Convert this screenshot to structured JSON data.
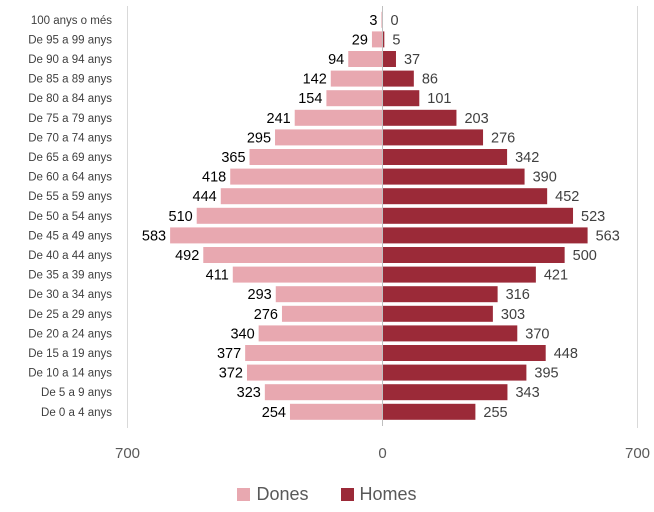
{
  "chart_data": {
    "type": "bar",
    "orientation": "horizontal",
    "layout": "population-pyramid",
    "categories": [
      "100 anys o més",
      "De 95 a 99 anys",
      "De 90 a 94 anys",
      "De 85 a 89 anys",
      "De 80 a 84 anys",
      "De 75 a 79 anys",
      "De 70 a 74 anys",
      "De 65 a 69 anys",
      "De 60 a 64 anys",
      "De 55 a 59 anys",
      "De 50 a 54 anys",
      "De 45 a 49 anys",
      "De 40 a 44 anys",
      "De 35 a 39 anys",
      "De 30 a 34 anys",
      "De 25 a 29 anys",
      "De 20 a 24 anys",
      "De 15 a 19 anys",
      "De 10 a 14 anys",
      "De 5 a 9 anys",
      "De 0 a 4 anys"
    ],
    "series": [
      {
        "name": "Dones",
        "side": "left",
        "color": "#e8a8b0",
        "values": [
          3,
          29,
          94,
          142,
          154,
          241,
          295,
          365,
          418,
          444,
          510,
          583,
          492,
          411,
          293,
          276,
          340,
          377,
          372,
          323,
          254
        ]
      },
      {
        "name": "Homes",
        "side": "right",
        "color": "#9b2a38",
        "values": [
          0,
          5,
          37,
          86,
          101,
          203,
          276,
          342,
          390,
          452,
          523,
          563,
          500,
          421,
          316,
          303,
          370,
          448,
          395,
          343,
          255
        ]
      }
    ],
    "xlim": [
      -700,
      700
    ],
    "x_tick_labels": [
      "700",
      "0",
      "700"
    ],
    "legend_position": "bottom",
    "grid": false
  }
}
